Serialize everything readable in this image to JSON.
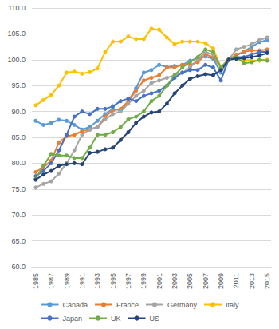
{
  "chart_data": {
    "type": "line",
    "categories": [
      "1985",
      null,
      "1987",
      null,
      "1989",
      null,
      "1991",
      null,
      "1993",
      null,
      "1995",
      null,
      "1997",
      null,
      "1999",
      null,
      "2001",
      null,
      "2003",
      null,
      "2005",
      null,
      "2007",
      null,
      "2009",
      null,
      "2011",
      null,
      "2013",
      null,
      "2015"
    ],
    "series": [
      {
        "name": "Canada",
        "color": "#5b9bd5",
        "values": [
          88.2,
          87.4,
          87.8,
          88.4,
          88.2,
          87.4,
          86.5,
          87.0,
          88.2,
          89.5,
          90.5,
          90.2,
          92.0,
          94.5,
          97.5,
          98.0,
          99.0,
          98.6,
          98.8,
          99.0,
          99.8,
          100.3,
          100.6,
          100.2,
          97.5,
          100.0,
          100.8,
          101.6,
          102.5,
          103.4,
          103.8
        ]
      },
      {
        "name": "France",
        "color": "#ed7d31",
        "values": [
          78.3,
          79.2,
          80.5,
          84.0,
          85.2,
          85.5,
          86.2,
          86.5,
          87.0,
          89.0,
          90.2,
          90.5,
          92.0,
          94.0,
          96.0,
          96.5,
          97.0,
          98.5,
          98.5,
          99.0,
          99.0,
          99.5,
          101.0,
          100.5,
          98.5,
          100.0,
          101.0,
          101.5,
          101.8,
          101.8,
          102.0
        ]
      },
      {
        "name": "Germany",
        "color": "#a5a5a5",
        "values": [
          75.3,
          76.0,
          76.5,
          78.0,
          80.0,
          82.5,
          85.5,
          86.5,
          87.0,
          88.5,
          89.5,
          90.0,
          91.5,
          93.0,
          94.0,
          95.5,
          96.0,
          96.5,
          97.0,
          97.5,
          98.5,
          100.0,
          101.5,
          101.0,
          98.5,
          100.0,
          102.0,
          102.5,
          103.0,
          103.8,
          104.3
        ]
      },
      {
        "name": "Italy",
        "color": "#ffc000",
        "values": [
          91.2,
          92.2,
          93.2,
          95.0,
          97.5,
          97.7,
          97.3,
          97.6,
          98.3,
          101.5,
          103.5,
          103.5,
          104.5,
          104.0,
          104.0,
          106.0,
          105.8,
          104.3,
          103.0,
          103.5,
          103.5,
          103.5,
          103.2,
          102.2,
          98.5,
          100.0,
          100.2,
          100.0,
          99.8,
          99.8,
          100.0
        ]
      },
      {
        "name": "Japan",
        "color": "#4472c4",
        "values": [
          77.5,
          78.5,
          80.0,
          82.5,
          85.5,
          89.0,
          90.0,
          89.5,
          90.5,
          90.5,
          91.0,
          92.0,
          92.5,
          92.0,
          93.0,
          93.5,
          94.0,
          95.0,
          96.5,
          97.5,
          98.0,
          98.0,
          99.0,
          98.5,
          96.0,
          100.0,
          100.5,
          100.5,
          101.0,
          101.5,
          101.5
        ]
      },
      {
        "name": "UK",
        "color": "#70ad47",
        "values": [
          77.0,
          79.5,
          81.8,
          81.5,
          81.5,
          81.0,
          81.0,
          83.0,
          85.5,
          85.5,
          86.0,
          87.0,
          88.5,
          89.0,
          90.0,
          92.0,
          93.0,
          95.0,
          97.0,
          98.5,
          99.5,
          100.5,
          102.0,
          101.5,
          98.5,
          100.0,
          100.5,
          99.3,
          99.5,
          100.0,
          99.8
        ]
      },
      {
        "name": "US",
        "color": "#264478",
        "values": [
          76.8,
          77.8,
          78.5,
          79.5,
          79.8,
          80.0,
          79.8,
          82.0,
          82.2,
          82.7,
          83.0,
          84.5,
          86.0,
          87.8,
          89.0,
          89.8,
          90.0,
          91.5,
          93.5,
          95.0,
          96.3,
          96.8,
          97.2,
          97.0,
          98.0,
          100.0,
          100.2,
          100.3,
          100.5,
          100.8,
          101.3
        ]
      }
    ],
    "ylim": [
      60,
      110
    ],
    "yticks": [
      {
        "value": 60,
        "label": "60.0"
      },
      {
        "value": 65,
        "label": "65.0"
      },
      {
        "value": 70,
        "label": "70.0"
      },
      {
        "value": 75,
        "label": "75.0"
      },
      {
        "value": 80,
        "label": "80.0"
      },
      {
        "value": 85,
        "label": "85.0"
      },
      {
        "value": 90,
        "label": "90.0"
      },
      {
        "value": 95,
        "label": "95.0"
      },
      {
        "value": 100,
        "label": "100.0"
      },
      {
        "value": 105,
        "label": "105.0"
      },
      {
        "value": 110,
        "label": "110.0"
      }
    ],
    "grid": true,
    "legend": "bottom",
    "marker": "circle"
  }
}
